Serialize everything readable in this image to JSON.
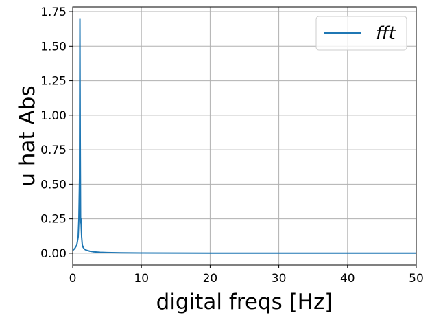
{
  "chart_data": {
    "type": "line",
    "xlabel": "digital freqs [Hz]",
    "ylabel": "u hat Abs",
    "xlim": [
      0,
      50
    ],
    "ylim": [
      -0.085,
      1.785
    ],
    "xticks": [
      0,
      10,
      20,
      30,
      40,
      50
    ],
    "xtick_labels": [
      "0",
      "10",
      "20",
      "30",
      "40",
      "50"
    ],
    "yticks": [
      0.0,
      0.25,
      0.5,
      0.75,
      1.0,
      1.25,
      1.5,
      1.75
    ],
    "ytick_labels": [
      "0.00",
      "0.25",
      "0.50",
      "0.75",
      "1.00",
      "1.25",
      "1.50",
      "1.75"
    ],
    "grid": true,
    "legend": {
      "placement": "top-right"
    },
    "colors": {
      "series": "#1f77b4",
      "grid": "#b0b0b0",
      "axes": "#000000"
    },
    "series": [
      {
        "name": "fft",
        "x": [
          0,
          0.3,
          0.6,
          0.8,
          0.9,
          1.0,
          1.05,
          1.1,
          1.15,
          1.2,
          1.3,
          1.4,
          1.5,
          1.7,
          2.0,
          2.5,
          3.0,
          4.0,
          5.0,
          7.0,
          10.0,
          15.0,
          20.0,
          30.0,
          40.0,
          50.0
        ],
        "y": [
          0.02,
          0.035,
          0.06,
          0.12,
          0.25,
          0.55,
          1.7,
          0.8,
          0.22,
          0.25,
          0.12,
          0.06,
          0.045,
          0.03,
          0.022,
          0.015,
          0.011,
          0.007,
          0.005,
          0.003,
          0.002,
          0.0015,
          0.001,
          0.0008,
          0.0006,
          0.0005
        ]
      }
    ]
  }
}
